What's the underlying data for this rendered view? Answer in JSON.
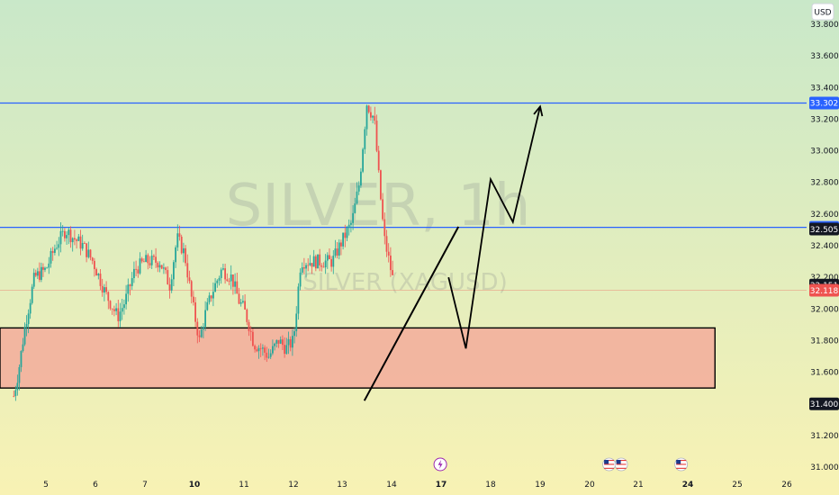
{
  "watermark": {
    "symbol": "SILVER, 1h",
    "pair": "SILVER (XAGUSD)"
  },
  "currency_label": "USD",
  "colors": {
    "bg_top": "#c9e8c9",
    "bg_bottom": "#f8f2b4",
    "up": "#26a69a",
    "down": "#ef5350",
    "level_line": "#2962ff",
    "zone_fill": "#f4a89a",
    "drawing": "#000000",
    "price_pink": "#ef5350"
  },
  "chart_data": {
    "type": "line",
    "ylim": [
      30.98,
      34.1
    ],
    "y_ticks": [
      "31.000",
      "31.200",
      "31.400",
      "31.600",
      "31.800",
      "32.000",
      "32.200",
      "32.400",
      "32.600",
      "32.800",
      "33.000",
      "33.200",
      "33.400",
      "33.600",
      "33.800"
    ],
    "y_values": [
      31.0,
      31.2,
      31.4,
      31.6,
      31.8,
      32.0,
      32.2,
      32.4,
      32.6,
      32.8,
      33.0,
      33.2,
      33.4,
      33.6,
      33.8
    ],
    "x_ticks": [
      {
        "label": "5",
        "day": 5,
        "bold": false
      },
      {
        "label": "6",
        "day": 6,
        "bold": false
      },
      {
        "label": "7",
        "day": 7,
        "bold": false
      },
      {
        "label": "10",
        "day": 10,
        "bold": true
      },
      {
        "label": "11",
        "day": 11,
        "bold": false
      },
      {
        "label": "12",
        "day": 12,
        "bold": false
      },
      {
        "label": "13",
        "day": 13,
        "bold": false
      },
      {
        "label": "14",
        "day": 14,
        "bold": false
      },
      {
        "label": "17",
        "day": 17,
        "bold": true
      },
      {
        "label": "18",
        "day": 18,
        "bold": false
      },
      {
        "label": "19",
        "day": 19,
        "bold": false
      },
      {
        "label": "20",
        "day": 20,
        "bold": false
      },
      {
        "label": "21",
        "day": 21,
        "bold": false
      },
      {
        "label": "24",
        "day": 24,
        "bold": true
      },
      {
        "label": "25",
        "day": 25,
        "bold": false
      },
      {
        "label": "26",
        "day": 26,
        "bold": false
      }
    ],
    "levels": [
      {
        "value": 33.302,
        "label": "33.302"
      },
      {
        "value": 32.516,
        "label": "32.516"
      }
    ],
    "price_labels": [
      {
        "value": 32.505,
        "label": "32.505",
        "style": "dark"
      },
      {
        "value": 32.151,
        "label": "32.151",
        "style": "dark"
      },
      {
        "value": 32.118,
        "label": "32.118",
        "style": "pink"
      },
      {
        "value": 31.4,
        "label": "31.400",
        "style": "dark"
      }
    ],
    "zone": {
      "top": 31.88,
      "bottom": 31.5,
      "day_end": 24.55
    },
    "price_path": [
      [
        4.3,
        31.45
      ],
      [
        4.4,
        31.6
      ],
      [
        4.55,
        31.9
      ],
      [
        4.75,
        32.2
      ],
      [
        5.0,
        32.25
      ],
      [
        5.2,
        32.4
      ],
      [
        5.4,
        32.5
      ],
      [
        5.55,
        32.45
      ],
      [
        5.75,
        32.4
      ],
      [
        5.95,
        32.3
      ],
      [
        6.2,
        32.1
      ],
      [
        6.45,
        31.95
      ],
      [
        6.6,
        32.05
      ],
      [
        6.8,
        32.25
      ],
      [
        7.0,
        32.3
      ],
      [
        7.3,
        32.3
      ],
      [
        7.5,
        32.15
      ],
      [
        7.65,
        32.45
      ],
      [
        7.8,
        32.35
      ],
      [
        7.95,
        32.05
      ],
      [
        8.1,
        31.8
      ],
      [
        8.2,
        31.95
      ],
      [
        8.35,
        32.1
      ],
      [
        8.55,
        32.25
      ],
      [
        8.75,
        32.2
      ],
      [
        8.9,
        32.05
      ],
      [
        9.0,
        32.0
      ],
      [
        9.1,
        31.9
      ],
      [
        9.2,
        31.78
      ],
      [
        9.35,
        31.75
      ],
      [
        9.5,
        31.7
      ],
      [
        9.7,
        31.8
      ],
      [
        9.85,
        31.75
      ],
      [
        10.0,
        31.8
      ],
      [
        10.15,
        32.3
      ],
      [
        10.4,
        32.3
      ],
      [
        10.6,
        32.3
      ],
      [
        10.8,
        32.3
      ],
      [
        10.95,
        32.4
      ],
      [
        11.2,
        32.55
      ],
      [
        11.35,
        32.8
      ],
      [
        11.5,
        33.3
      ],
      [
        11.65,
        33.2
      ],
      [
        11.75,
        32.8
      ],
      [
        11.85,
        32.45
      ],
      [
        11.95,
        32.3
      ],
      [
        12.05,
        32.15
      ]
    ],
    "zigzag": [
      [
        17.15,
        32.2
      ],
      [
        17.5,
        31.75
      ],
      [
        18.0,
        32.82
      ],
      [
        18.45,
        32.55
      ],
      [
        19.0,
        33.28
      ]
    ],
    "trendline": [
      [
        11.45,
        31.42
      ],
      [
        17.35,
        32.52
      ]
    ],
    "event_icons": [
      {
        "name": "lightning-event-icon",
        "day": 16.95,
        "glyph": "⚡"
      },
      {
        "name": "us-flag-event-icon-1",
        "day": 20.4,
        "glyph": ""
      },
      {
        "name": "us-flag-event-icon-2",
        "day": 20.65,
        "glyph": ""
      },
      {
        "name": "us-flag-event-icon-3",
        "day": 23.6,
        "glyph": ""
      }
    ]
  }
}
